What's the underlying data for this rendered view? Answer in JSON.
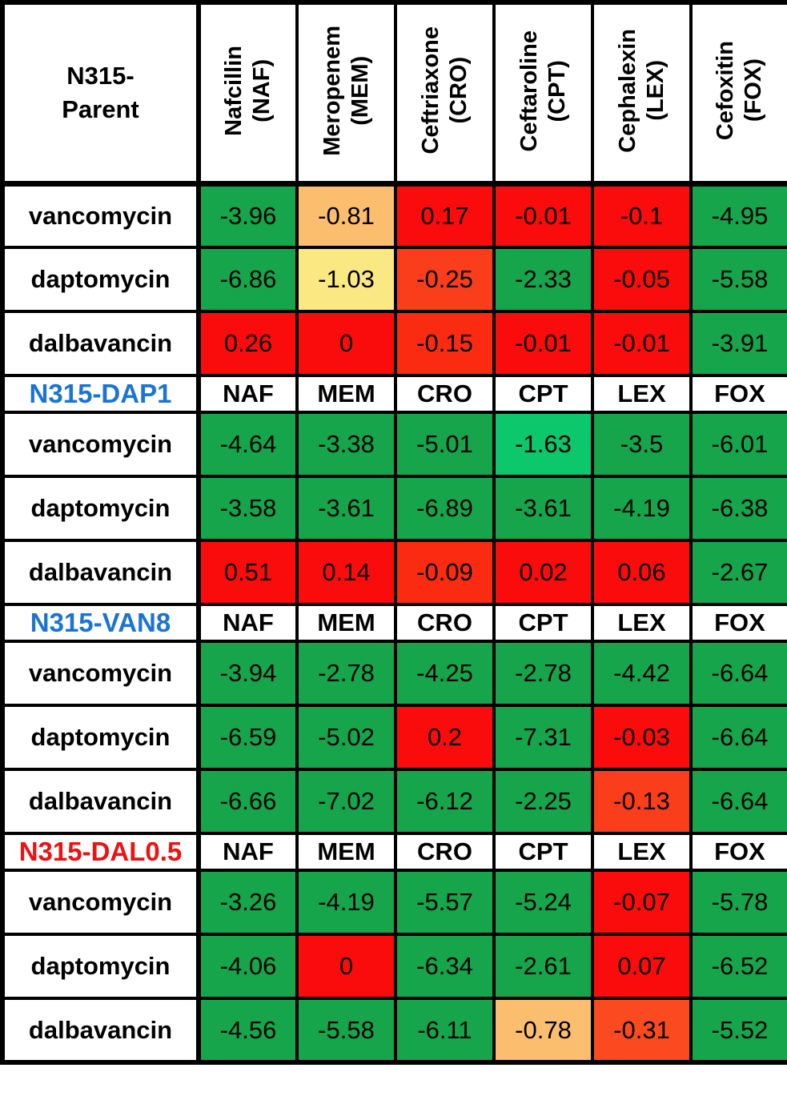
{
  "palette": {
    "green": "#16A54B",
    "emerald": "#0CC76B",
    "red": "#FB0C0C",
    "redorange": "#FB2B12",
    "orange": "#FA3D1B",
    "orange2": "#FB4A20",
    "sand": "#FBBD6E",
    "yellow": "#FAE983",
    "blue_label": "#1B74D4",
    "red_label": "#EC1212",
    "black": "#000000"
  },
  "chart_data": {
    "type": "heatmap",
    "corner_label": "N315-\nParent",
    "columns": [
      {
        "name": "Nafcillin",
        "abbr": "NAF"
      },
      {
        "name": "Meropenem",
        "abbr": "MEM"
      },
      {
        "name": "Ceftriaxone",
        "abbr": "CRO"
      },
      {
        "name": "Ceftaroline",
        "abbr": "CPT"
      },
      {
        "name": "Cephalexin",
        "abbr": "LEX"
      },
      {
        "name": "Cefoxitin",
        "abbr": "FOX"
      }
    ],
    "sections": [
      {
        "label": "N315-Parent",
        "label_color": "#000000",
        "show_subheader": false,
        "rows": [
          {
            "label": "vancomycin",
            "values": [
              "-3.96",
              "-0.81",
              "0.17",
              "-0.01",
              "-0.1",
              "-4.95"
            ],
            "colors": [
              "green",
              "sand",
              "red",
              "red",
              "red",
              "green"
            ]
          },
          {
            "label": "daptomycin",
            "values": [
              "-6.86",
              "-1.03",
              "-0.25",
              "-2.33",
              "-0.05",
              "-5.58"
            ],
            "colors": [
              "green",
              "yellow",
              "orange",
              "green",
              "red",
              "green"
            ]
          },
          {
            "label": "dalbavancin",
            "values": [
              "0.26",
              "0",
              "-0.15",
              "-0.01",
              "-0.01",
              "-3.91"
            ],
            "colors": [
              "red",
              "red",
              "redorange",
              "red",
              "red",
              "green"
            ]
          }
        ]
      },
      {
        "label": "N315-DAP1",
        "label_color": "#1B74D4",
        "show_subheader": true,
        "rows": [
          {
            "label": "vancomycin",
            "values": [
              "-4.64",
              "-3.38",
              "-5.01",
              "-1.63",
              "-3.5",
              "-6.01"
            ],
            "colors": [
              "green",
              "green",
              "green",
              "emerald",
              "green",
              "green"
            ]
          },
          {
            "label": "daptomycin",
            "values": [
              "-3.58",
              "-3.61",
              "-6.89",
              "-3.61",
              "-4.19",
              "-6.38"
            ],
            "colors": [
              "green",
              "green",
              "green",
              "green",
              "green",
              "green"
            ]
          },
          {
            "label": "dalbavancin",
            "values": [
              "0.51",
              "0.14",
              "-0.09",
              "0.02",
              "0.06",
              "-2.67"
            ],
            "colors": [
              "red",
              "red",
              "redorange",
              "red",
              "red",
              "green"
            ]
          }
        ]
      },
      {
        "label": "N315-VAN8",
        "label_color": "#1B74D4",
        "show_subheader": true,
        "rows": [
          {
            "label": "vancomycin",
            "values": [
              "-3.94",
              "-2.78",
              "-4.25",
              "-2.78",
              "-4.42",
              "-6.64"
            ],
            "colors": [
              "green",
              "green",
              "green",
              "green",
              "green",
              "green"
            ]
          },
          {
            "label": "daptomycin",
            "values": [
              "-6.59",
              "-5.02",
              "0.2",
              "-7.31",
              "-0.03",
              "-6.64"
            ],
            "colors": [
              "green",
              "green",
              "red",
              "green",
              "red",
              "green"
            ]
          },
          {
            "label": "dalbavancin",
            "values": [
              "-6.66",
              "-7.02",
              "-6.12",
              "-2.25",
              "-0.13",
              "-6.64"
            ],
            "colors": [
              "green",
              "green",
              "green",
              "green",
              "orange",
              "green"
            ]
          }
        ]
      },
      {
        "label": "N315-DAL0.5",
        "label_color": "#EC1212",
        "show_subheader": true,
        "rows": [
          {
            "label": "vancomycin",
            "values": [
              "-3.26",
              "-4.19",
              "-5.57",
              "-5.24",
              "-0.07",
              "-5.78"
            ],
            "colors": [
              "green",
              "green",
              "green",
              "green",
              "red",
              "green"
            ]
          },
          {
            "label": "daptomycin",
            "values": [
              "-4.06",
              "0",
              "-6.34",
              "-2.61",
              "0.07",
              "-6.52"
            ],
            "colors": [
              "green",
              "red",
              "green",
              "green",
              "red",
              "green"
            ]
          },
          {
            "label": "dalbavancin",
            "values": [
              "-4.56",
              "-5.58",
              "-6.11",
              "-0.78",
              "-0.31",
              "-5.52"
            ],
            "colors": [
              "green",
              "green",
              "green",
              "sand",
              "orange2",
              "green"
            ]
          }
        ]
      }
    ]
  }
}
